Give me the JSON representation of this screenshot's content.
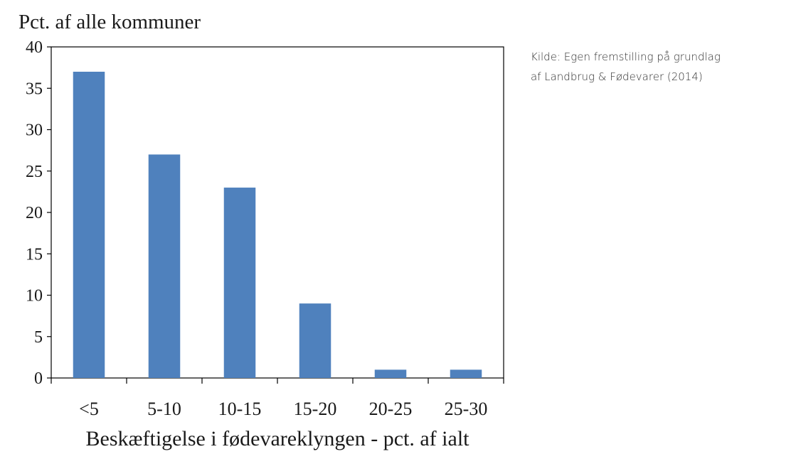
{
  "chart_data": {
    "type": "bar",
    "categories": [
      "<5",
      "5-10",
      "10-15",
      "15-20",
      "20-25",
      "25-30"
    ],
    "values": [
      37,
      27,
      23,
      9,
      1,
      1
    ],
    "ylabel": "Pct. af alle kommuner",
    "xlabel": "Beskæftigelse i fødevareklyngen - pct. af ialt",
    "ylim": [
      0,
      40
    ],
    "yticks": [
      0,
      5,
      10,
      15,
      20,
      25,
      30,
      35,
      40
    ],
    "grid": false,
    "legend": "none",
    "bar_color": "#4f81bd"
  },
  "source": {
    "line1": "Kilde: Egen fremstilling på grundlag",
    "line2": "af Landbrug & Fødevarer (2014)"
  }
}
